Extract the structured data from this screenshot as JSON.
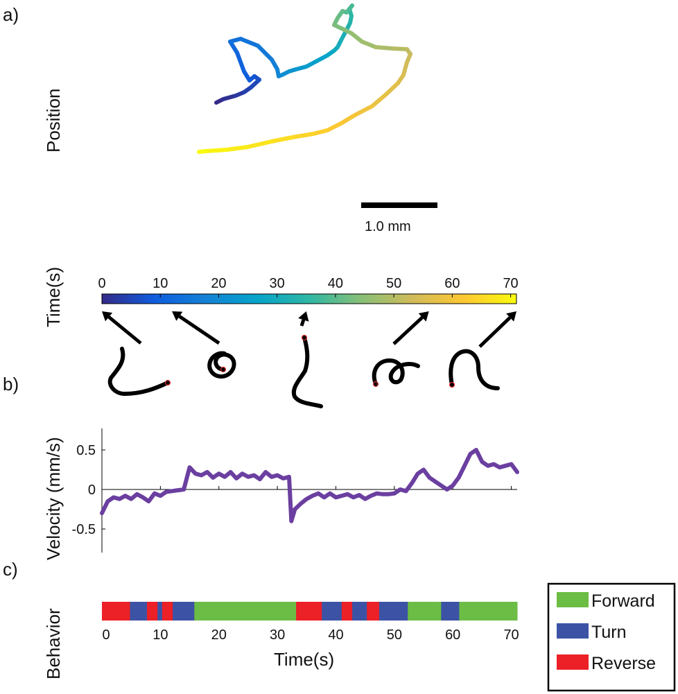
{
  "panels": {
    "a": "a)",
    "b": "b)",
    "c": "c)"
  },
  "chart_data": [
    {
      "type": "line",
      "panel": "a",
      "ylabel": "Position",
      "colormap": "time (0-70 s)",
      "trajectory": [
        [
          0.0,
          0.0
        ],
        [
          0.1,
          0.05
        ],
        [
          0.28,
          0.1
        ],
        [
          0.4,
          0.15
        ],
        [
          0.5,
          0.22
        ],
        [
          0.62,
          0.33
        ],
        [
          0.55,
          0.38
        ],
        [
          0.48,
          0.32
        ],
        [
          0.4,
          0.45
        ],
        [
          0.3,
          0.72
        ],
        [
          0.2,
          0.88
        ],
        [
          0.35,
          0.92
        ],
        [
          0.6,
          0.82
        ],
        [
          0.8,
          0.62
        ],
        [
          0.88,
          0.48
        ],
        [
          0.9,
          0.38
        ],
        [
          0.95,
          0.4
        ],
        [
          1.05,
          0.45
        ],
        [
          1.15,
          0.48
        ],
        [
          1.3,
          0.52
        ],
        [
          1.45,
          0.6
        ],
        [
          1.6,
          0.68
        ],
        [
          1.7,
          0.75
        ],
        [
          1.75,
          0.8
        ],
        [
          1.8,
          0.9
        ],
        [
          1.88,
          1.05
        ],
        [
          1.93,
          1.15
        ],
        [
          1.95,
          1.25
        ],
        [
          1.92,
          1.35
        ],
        [
          1.96,
          1.4
        ],
        [
          1.88,
          1.3
        ],
        [
          1.82,
          1.32
        ],
        [
          1.75,
          1.22
        ],
        [
          1.7,
          1.12
        ],
        [
          1.85,
          1.05
        ],
        [
          1.95,
          1.0
        ],
        [
          2.1,
          0.88
        ],
        [
          2.3,
          0.8
        ],
        [
          2.55,
          0.78
        ],
        [
          2.75,
          0.77
        ],
        [
          2.8,
          0.7
        ],
        [
          2.75,
          0.58
        ],
        [
          2.7,
          0.4
        ],
        [
          2.62,
          0.28
        ],
        [
          2.45,
          0.12
        ],
        [
          2.25,
          -0.05
        ],
        [
          2.0,
          -0.18
        ],
        [
          1.8,
          -0.3
        ],
        [
          1.6,
          -0.4
        ],
        [
          1.4,
          -0.45
        ],
        [
          1.1,
          -0.5
        ],
        [
          0.8,
          -0.56
        ],
        [
          0.45,
          -0.64
        ],
        [
          0.15,
          -0.68
        ],
        [
          -0.15,
          -0.7
        ],
        [
          -0.25,
          -0.71
        ]
      ],
      "scalebar_label": "1.0 mm"
    },
    {
      "type": "heatmap",
      "panel": "colorbar",
      "ylabel": "Time(s)",
      "ticks": [
        "0",
        "10",
        "20",
        "30",
        "40",
        "50",
        "60",
        "70"
      ],
      "range": [
        0,
        71
      ],
      "colors": [
        "#352a87",
        "#0f5cdd",
        "#1481d6",
        "#06a4ca",
        "#2eb7a4",
        "#87bf77",
        "#d1bb59",
        "#fec832",
        "#f9fb0e"
      ],
      "posture_times": [
        0,
        12,
        35,
        56,
        71
      ]
    },
    {
      "type": "line",
      "panel": "b",
      "ylabel": "Velocity (mm/s)",
      "xlim": [
        0,
        71
      ],
      "ylim": [
        -0.8,
        0.8
      ],
      "yticks": [
        "0.5",
        "0",
        "-0.5"
      ],
      "series": [
        {
          "name": "velocity",
          "color": "#6b3fa0",
          "x": [
            0,
            1,
            2,
            3,
            4,
            5,
            6,
            7,
            8,
            9,
            10,
            11,
            12,
            13,
            14,
            15,
            16,
            17,
            18,
            19,
            20,
            21,
            22,
            23,
            24,
            25,
            26,
            27,
            28,
            29,
            30,
            31,
            32,
            32.4,
            33,
            34,
            35,
            36,
            37,
            38,
            39,
            40,
            41,
            42,
            43,
            44,
            45,
            46,
            47,
            48,
            49,
            50,
            51,
            52,
            53,
            54,
            55,
            56,
            57,
            58,
            59,
            60,
            61,
            62,
            63,
            64,
            65,
            66,
            67,
            68,
            69,
            70,
            71
          ],
          "y": [
            -0.3,
            -0.15,
            -0.1,
            -0.12,
            -0.08,
            -0.12,
            -0.06,
            -0.1,
            -0.15,
            -0.05,
            -0.08,
            -0.03,
            -0.02,
            -0.01,
            0.0,
            0.28,
            0.2,
            0.18,
            0.22,
            0.15,
            0.2,
            0.16,
            0.22,
            0.14,
            0.2,
            0.16,
            0.18,
            0.13,
            0.22,
            0.16,
            0.18,
            0.14,
            0.16,
            -0.4,
            -0.25,
            -0.18,
            -0.12,
            -0.08,
            -0.05,
            -0.1,
            -0.05,
            -0.1,
            -0.08,
            -0.06,
            -0.1,
            -0.07,
            -0.12,
            -0.08,
            -0.05,
            -0.06,
            -0.06,
            -0.05,
            0.0,
            -0.02,
            0.08,
            0.2,
            0.25,
            0.15,
            0.1,
            0.05,
            0.0,
            0.05,
            0.15,
            0.3,
            0.45,
            0.5,
            0.35,
            0.3,
            0.32,
            0.28,
            0.3,
            0.32,
            0.22
          ]
        }
      ]
    },
    {
      "type": "bar",
      "panel": "c",
      "ylabel": "Behavior",
      "xlabel": "Time(s)",
      "xlim": [
        0,
        71
      ],
      "xticks": [
        "0",
        "10",
        "20",
        "30",
        "40",
        "50",
        "60",
        "70"
      ],
      "segments": [
        {
          "start": 0,
          "end": 4.8,
          "behavior": "Reverse"
        },
        {
          "start": 4.8,
          "end": 7.7,
          "behavior": "Turn"
        },
        {
          "start": 7.7,
          "end": 9.5,
          "behavior": "Reverse"
        },
        {
          "start": 9.5,
          "end": 10.3,
          "behavior": "Turn"
        },
        {
          "start": 10.3,
          "end": 12.1,
          "behavior": "Reverse"
        },
        {
          "start": 12.1,
          "end": 15.8,
          "behavior": "Turn"
        },
        {
          "start": 15.8,
          "end": 33.2,
          "behavior": "Forward"
        },
        {
          "start": 33.2,
          "end": 37.6,
          "behavior": "Reverse"
        },
        {
          "start": 37.6,
          "end": 41.0,
          "behavior": "Turn"
        },
        {
          "start": 41.0,
          "end": 42.8,
          "behavior": "Reverse"
        },
        {
          "start": 42.8,
          "end": 45.3,
          "behavior": "Turn"
        },
        {
          "start": 45.3,
          "end": 47.4,
          "behavior": "Reverse"
        },
        {
          "start": 47.4,
          "end": 52.3,
          "behavior": "Turn"
        },
        {
          "start": 52.3,
          "end": 58.0,
          "behavior": "Forward"
        },
        {
          "start": 58.0,
          "end": 61.1,
          "behavior": "Turn"
        },
        {
          "start": 61.1,
          "end": 71,
          "behavior": "Forward"
        }
      ],
      "legend": [
        {
          "label": "Forward",
          "color": "#6cbd45"
        },
        {
          "label": "Turn",
          "color": "#3c53a5"
        },
        {
          "label": "Reverse",
          "color": "#ec2027"
        }
      ]
    }
  ]
}
